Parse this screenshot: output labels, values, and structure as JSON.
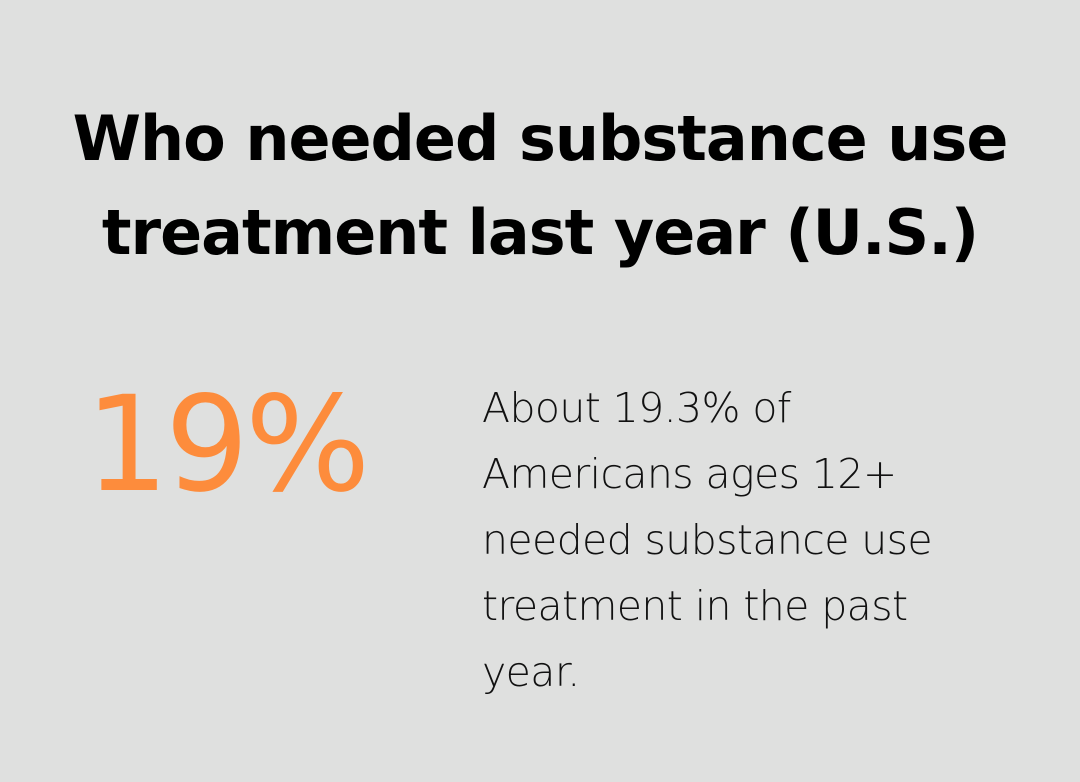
{
  "title": "Who needed substance use treatment last year (U.S.)",
  "stat": {
    "value": "19%",
    "color": "#fd8c3c"
  },
  "description": "About 19.3% of Americans ages 12+ needed substance use treatment in the past year.",
  "background_color": "#dfe0df"
}
